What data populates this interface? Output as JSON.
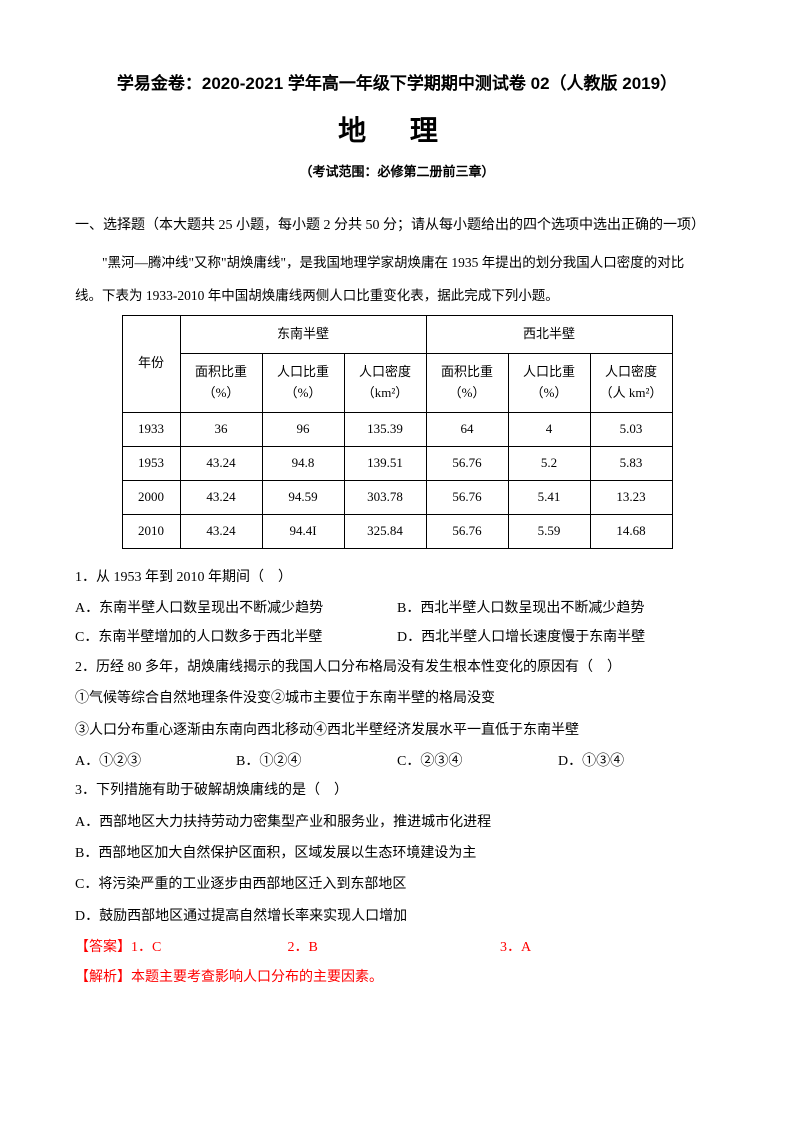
{
  "header": {
    "main_title": "学易金卷：2020-2021 学年高一年级下学期期中测试卷 02（人教版 2019）",
    "subject": "地 理",
    "scope": "（考试范围：必修第二册前三章）"
  },
  "section_title": "一、选择题（本大题共 25 小题，每小题 2 分共 50 分；请从每小题给出的四个选项中选出正确的一项）",
  "passage_line1": "\"黑河—腾冲线\"又称\"胡焕庸线\"，是我国地理学家胡焕庸在 1935 年提出的划分我国人口密度的对比",
  "passage_line2": "线。下表为 1933-2010 年中国胡焕庸线两侧人口比重变化表，据此完成下列小题。",
  "table": {
    "col_year": "年份",
    "region1": "东南半壁",
    "region2": "西北半壁",
    "sub_headers": {
      "area": "面积比重",
      "area_unit": "（%）",
      "pop": "人口比重",
      "pop_unit": "（%）",
      "density": "人口密度",
      "density_unit1": "（km²）",
      "density_unit2": "（人 km²）"
    },
    "rows": [
      {
        "year": "1933",
        "a1": "36",
        "a2": "96",
        "a3": "135.39",
        "b1": "64",
        "b2": "4",
        "b3": "5.03"
      },
      {
        "year": "1953",
        "a1": "43.24",
        "a2": "94.8",
        "a3": "139.51",
        "b1": "56.76",
        "b2": "5.2",
        "b3": "5.83"
      },
      {
        "year": "2000",
        "a1": "43.24",
        "a2": "94.59",
        "a3": "303.78",
        "b1": "56.76",
        "b2": "5.41",
        "b3": "13.23"
      },
      {
        "year": "2010",
        "a1": "43.24",
        "a2": "94.4I",
        "a3": "325.84",
        "b1": "56.76",
        "b2": "5.59",
        "b3": "14.68"
      }
    ]
  },
  "questions": {
    "q1": {
      "text": "1．从 1953 年到 2010 年期间（　）",
      "optA": "A．东南半壁人口数呈现出不断减少趋势",
      "optB": "B．西北半壁人口数呈现出不断减少趋势",
      "optC": "C．东南半壁增加的人口数多于西北半壁",
      "optD": "D．西北半壁人口增长速度慢于东南半壁"
    },
    "q2": {
      "text": "2．历经 80 多年，胡焕庸线揭示的我国人口分布格局没有发生根本性变化的原因有（　）",
      "line1": "①气候等综合自然地理条件没变②城市主要位于东南半壁的格局没变",
      "line2": "③人口分布重心逐渐由东南向西北移动④西北半壁经济发展水平一直低于东南半壁",
      "optA": "A．①②③",
      "optB": "B．①②④",
      "optC": "C．②③④",
      "optD": "D．①③④"
    },
    "q3": {
      "text": "3．下列措施有助于破解胡焕庸线的是（　）",
      "optA": "A．西部地区大力扶持劳动力密集型产业和服务业，推进城市化进程",
      "optB": "B．西部地区加大自然保护区面积，区域发展以生态环境建设为主",
      "optC": "C．将污染严重的工业逐步由西部地区迁入到东部地区",
      "optD": "D．鼓励西部地区通过提高自然增长率来实现人口增加"
    }
  },
  "answers": {
    "label": "【答案】",
    "a1": "1．C",
    "a2": "2．B",
    "a3": "3．A"
  },
  "analysis": {
    "label": "【解析】",
    "text": "本题主要考查影响人口分布的主要因素。"
  }
}
